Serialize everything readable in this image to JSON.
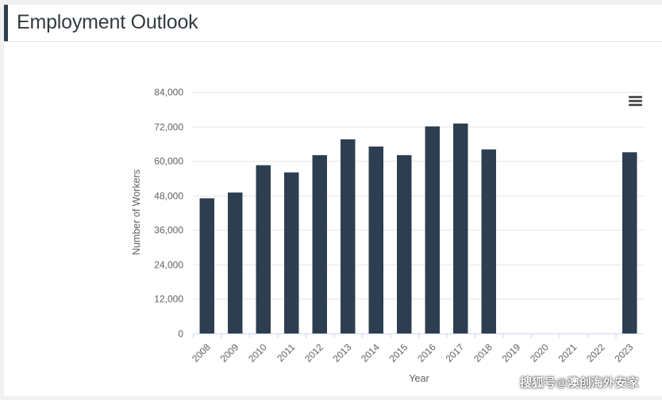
{
  "page": {
    "title": "Employment Outlook"
  },
  "colors": {
    "bar": "#2c3e50",
    "accent": "#2c3e50",
    "grid": "#e6e6e6",
    "axis_text": "#606060"
  },
  "menu": {
    "icon": "hamburger-menu-icon"
  },
  "watermark": "搜狐号@澳创海外安家",
  "chart_data": {
    "type": "bar",
    "title": "",
    "xlabel": "Year",
    "ylabel": "Number of Workers",
    "ylim": [
      0,
      84000
    ],
    "grid": true,
    "y_ticks": [
      0,
      12000,
      24000,
      36000,
      48000,
      60000,
      72000,
      84000
    ],
    "y_tick_labels": [
      "0",
      "12,000",
      "24,000",
      "36,000",
      "48,000",
      "60,000",
      "72,000",
      "84,000"
    ],
    "categories": [
      "2008",
      "2009",
      "2010",
      "2011",
      "2012",
      "2013",
      "2014",
      "2015",
      "2016",
      "2017",
      "2018",
      "2019",
      "2020",
      "2021",
      "2022",
      "2023"
    ],
    "series": [
      {
        "values": [
          47000,
          49000,
          58500,
          56000,
          62000,
          67500,
          65000,
          62000,
          72000,
          73000,
          64000,
          null,
          null,
          null,
          null,
          63000
        ]
      }
    ]
  }
}
